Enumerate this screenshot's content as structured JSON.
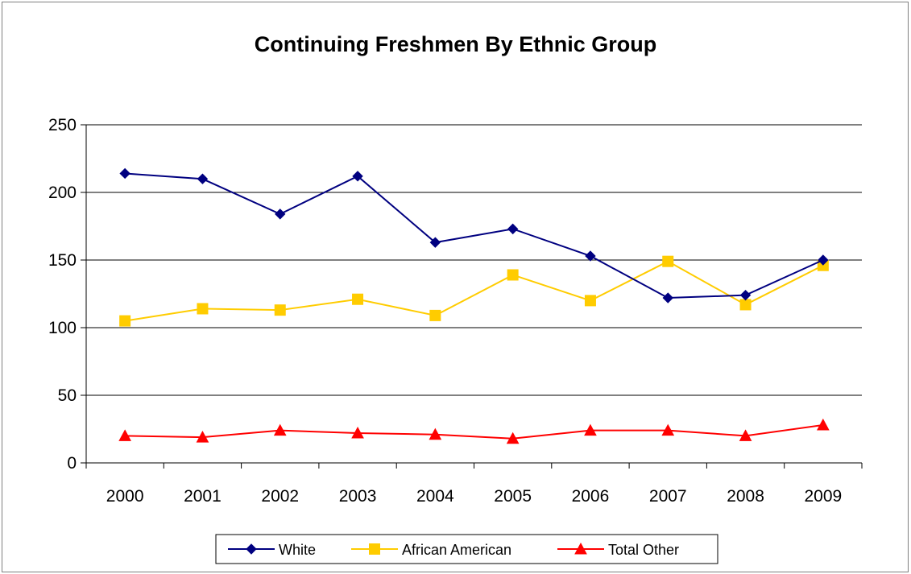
{
  "chart_data": {
    "type": "line",
    "title": "Continuing Freshmen By Ethnic Group",
    "xlabel": "",
    "ylabel": "",
    "categories": [
      "2000",
      "2001",
      "2002",
      "2003",
      "2004",
      "2005",
      "2006",
      "2007",
      "2008",
      "2009"
    ],
    "ylim": [
      0,
      250
    ],
    "yticks": [
      "0",
      "50",
      "100",
      "150",
      "200",
      "250"
    ],
    "grid": true,
    "legend_position": "bottom",
    "series": [
      {
        "name": "White",
        "color": "#000080",
        "marker": "diamond",
        "values": [
          214,
          210,
          184,
          212,
          163,
          173,
          153,
          122,
          124,
          150
        ]
      },
      {
        "name": "African American",
        "color": "#FFCC00",
        "marker": "square",
        "values": [
          105,
          114,
          113,
          121,
          109,
          139,
          120,
          149,
          117,
          146
        ]
      },
      {
        "name": "Total Other",
        "color": "#FF0000",
        "marker": "triangle",
        "values": [
          20,
          19,
          24,
          22,
          21,
          18,
          24,
          24,
          20,
          28
        ]
      }
    ]
  }
}
